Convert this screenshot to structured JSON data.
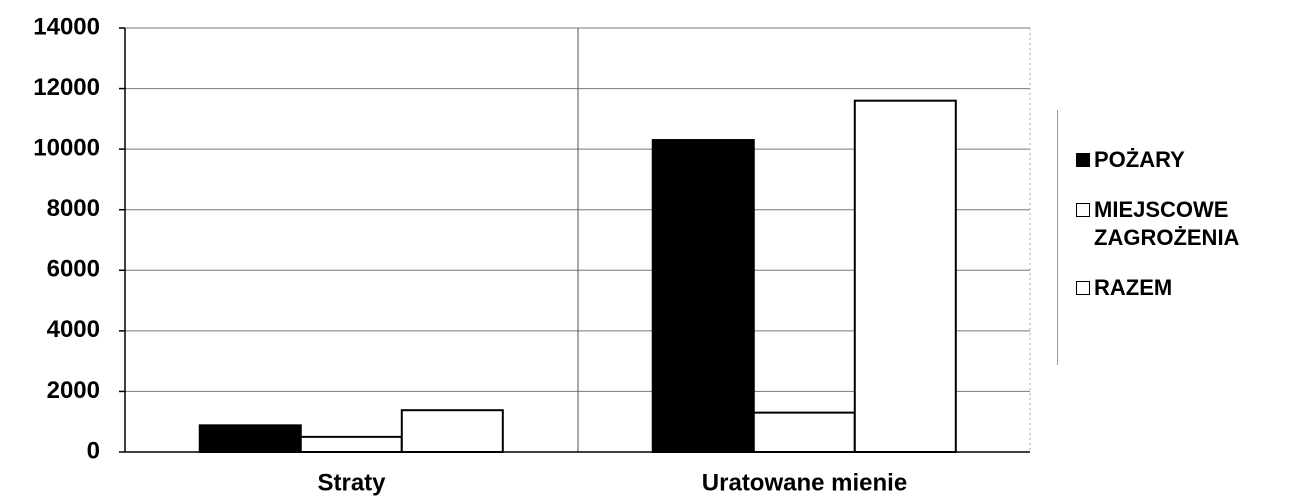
{
  "chart_data": {
    "type": "bar",
    "categories": [
      "Straty",
      "Uratowane mienie"
    ],
    "series": [
      {
        "name": "POŻARY",
        "color": "#000000",
        "values": [
          880,
          10300
        ]
      },
      {
        "name": "MIEJSCOWE ZAGROŻENIA",
        "color": "#ffffff",
        "values": [
          500,
          1300
        ]
      },
      {
        "name": "RAZEM",
        "color": "#ffffff",
        "values": [
          1380,
          11600
        ]
      }
    ],
    "ylim": [
      0,
      14000
    ],
    "yticks": [
      0,
      2000,
      4000,
      6000,
      8000,
      10000,
      12000,
      14000
    ],
    "grid": true,
    "legend": "right"
  }
}
